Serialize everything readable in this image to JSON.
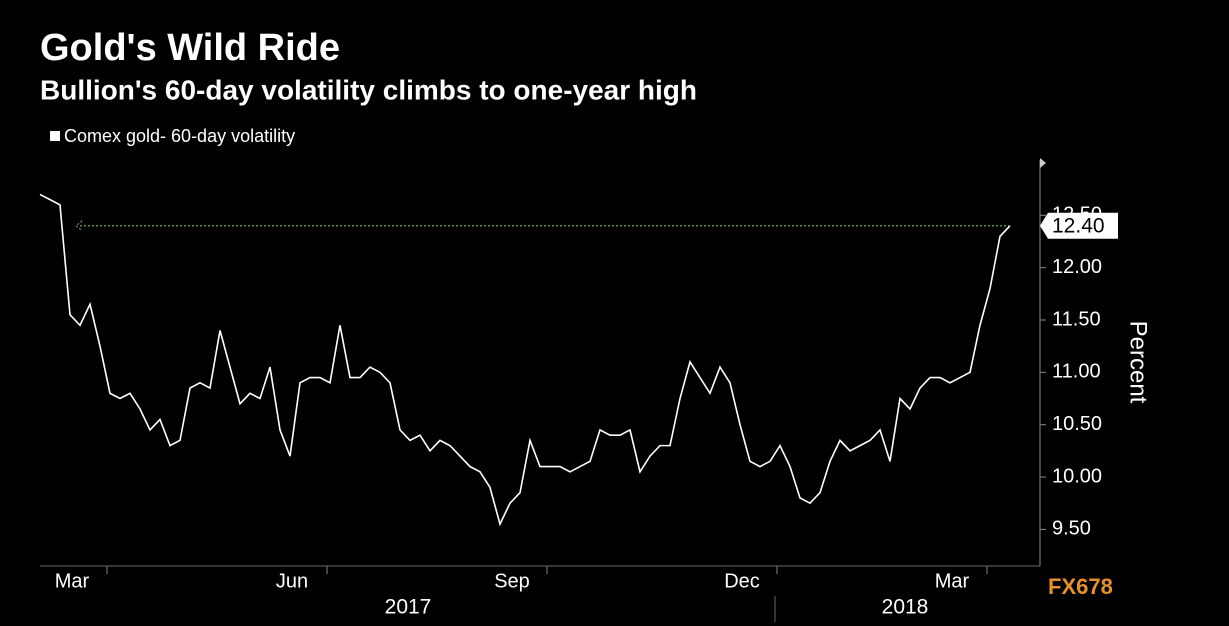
{
  "chart_data": {
    "type": "line",
    "title": "Gold's Wild Ride",
    "subtitle": "Bullion's 60-day volatility climbs to one-year high",
    "y_axis_label": "Percent",
    "categories": [
      null,
      null,
      null,
      null,
      null,
      null,
      null,
      "Mar",
      null,
      null,
      null,
      null,
      null,
      null,
      null,
      null,
      null,
      null,
      null,
      null,
      null,
      null,
      null,
      null,
      null,
      null,
      null,
      null,
      null,
      "Jun",
      null,
      null,
      null,
      null,
      null,
      null,
      null,
      null,
      null,
      null,
      null,
      null,
      null,
      null,
      null,
      null,
      null,
      null,
      null,
      null,
      null,
      "Sep",
      null,
      null,
      null,
      null,
      null,
      null,
      null,
      null,
      null,
      null,
      null,
      null,
      null,
      null,
      null,
      null,
      null,
      null,
      null,
      null,
      null,
      null,
      "Dec",
      null,
      null,
      null,
      null,
      null,
      null,
      null,
      null,
      null,
      null,
      null,
      null,
      null,
      null,
      null,
      null,
      null,
      null,
      null,
      null,
      "Mar",
      null,
      null
    ],
    "year_labels": [
      "2017",
      "2018"
    ],
    "series": [
      {
        "name": "Comex gold- 60-day volatility",
        "color": "#ffffff",
        "values": [
          12.7,
          12.65,
          12.6,
          11.55,
          11.45,
          11.65,
          11.25,
          10.8,
          10.75,
          10.8,
          10.65,
          10.45,
          10.55,
          10.3,
          10.35,
          10.85,
          10.9,
          10.85,
          11.4,
          11.05,
          10.7,
          10.8,
          10.75,
          11.05,
          10.45,
          10.2,
          10.9,
          10.95,
          10.95,
          10.9,
          11.45,
          10.95,
          10.95,
          11.05,
          11.0,
          10.9,
          10.45,
          10.35,
          10.4,
          10.25,
          10.35,
          10.3,
          10.2,
          10.1,
          10.05,
          9.9,
          9.55,
          9.75,
          9.85,
          10.35,
          10.1,
          10.1,
          10.1,
          10.05,
          10.1,
          10.15,
          10.45,
          10.4,
          10.4,
          10.45,
          10.05,
          10.2,
          10.3,
          10.3,
          10.75,
          11.1,
          10.95,
          10.8,
          11.05,
          10.9,
          10.5,
          10.15,
          10.1,
          10.15,
          10.3,
          10.1,
          9.8,
          9.75,
          9.85,
          10.15,
          10.35,
          10.25,
          10.3,
          10.35,
          10.45,
          10.15,
          10.75,
          10.65,
          10.85,
          10.95,
          10.95,
          10.9,
          10.95,
          11.0,
          11.45,
          11.8,
          12.3,
          12.4
        ],
        "value_labels": [
          null,
          null,
          null,
          null,
          null,
          null,
          null,
          null,
          null,
          null,
          null,
          null,
          null,
          null,
          null,
          null,
          null,
          null,
          null,
          null,
          null,
          null,
          null,
          null,
          null,
          null,
          null,
          null,
          null,
          null,
          null,
          null,
          null,
          null,
          null,
          null,
          null,
          null,
          null,
          null,
          null,
          null,
          null,
          null,
          null,
          null,
          null,
          null,
          null,
          null,
          null,
          null,
          null,
          null,
          null,
          null,
          null,
          null,
          null,
          null,
          null,
          null,
          null,
          null,
          null,
          null,
          null,
          null,
          null,
          null,
          null,
          null,
          null,
          null,
          null,
          null,
          null,
          null,
          null,
          null,
          null,
          null,
          null,
          null,
          null,
          null,
          null,
          null,
          null,
          null,
          null,
          null,
          null,
          null,
          null,
          null,
          null,
          "12.40"
        ]
      }
    ],
    "reference_line_color": "#7cc242",
    "ylim": [
      9.15,
      13.0
    ],
    "yticks": [
      {
        "value": 9.5,
        "label": "9.50"
      },
      {
        "value": 10,
        "label": "10.00"
      },
      {
        "value": 10.5,
        "label": "10.50"
      },
      {
        "value": 11,
        "label": "11.00"
      },
      {
        "value": 11.5,
        "label": "11.50"
      },
      {
        "value": 12,
        "label": "12.00"
      },
      {
        "value": 12.5,
        "label": "12.50"
      }
    ],
    "grid": false,
    "watermark": "FX678"
  }
}
